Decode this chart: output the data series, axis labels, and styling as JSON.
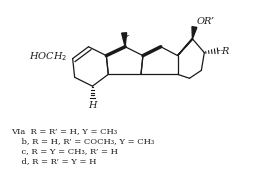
{
  "background_color": "#ffffff",
  "text_color": "#1a1a1a",
  "lines_label": [
    "VIa  R = R’ = H, Y = CH₃",
    "    b, R = H, R’ = COCH₃, Y = CH₃",
    "    c, R = Y = CH₃, R’ = H",
    "    d, R = R’ = Y = H"
  ],
  "figsize": [
    2.75,
    1.95
  ],
  "dpi": 100
}
